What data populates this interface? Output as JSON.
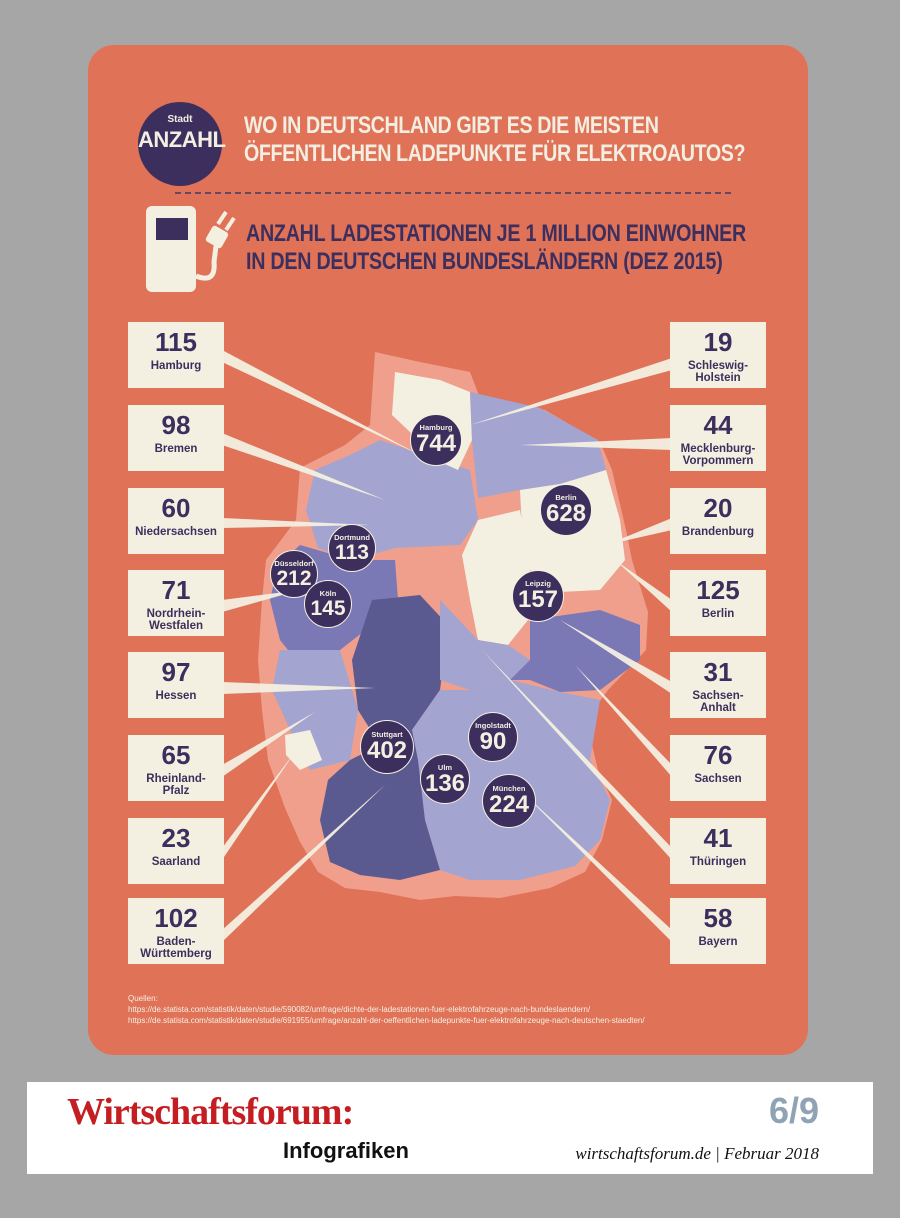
{
  "badge": {
    "small": "Stadt",
    "big": "ANZAHL"
  },
  "headline": {
    "line1": "WO IN DEUTSCHLAND GIBT ES DIE MEISTEN",
    "line2": "ÖFFENTLICHEN  LADEPUNKTE FÜR ELEKTROAUTOS?"
  },
  "subhead": {
    "line1": "ANZAHL LADESTATIONEN JE 1 MILLION EINWOHNER",
    "line2": "IN DEN DEUTSCHEN BUNDESLÄNDERN (DEZ 2015)"
  },
  "states_left": [
    {
      "value": "115",
      "name1": "Hamburg",
      "name2": ""
    },
    {
      "value": "98",
      "name1": "Bremen",
      "name2": ""
    },
    {
      "value": "60",
      "name1": "Niedersachsen",
      "name2": ""
    },
    {
      "value": "71",
      "name1": "Nordrhein-",
      "name2": "Westfalen"
    },
    {
      "value": "97",
      "name1": "Hessen",
      "name2": ""
    },
    {
      "value": "65",
      "name1": "Rheinland-",
      "name2": "Pfalz"
    },
    {
      "value": "23",
      "name1": "Saarland",
      "name2": ""
    },
    {
      "value": "102",
      "name1": "Baden-",
      "name2": "Württemberg"
    }
  ],
  "states_right": [
    {
      "value": "19",
      "name1": "Schleswig-",
      "name2": "Holstein"
    },
    {
      "value": "44",
      "name1": "Mecklenburg-",
      "name2": "Vorpommern"
    },
    {
      "value": "20",
      "name1": "Brandenburg",
      "name2": ""
    },
    {
      "value": "125",
      "name1": "Berlin",
      "name2": ""
    },
    {
      "value": "31",
      "name1": "Sachsen-",
      "name2": "Anhalt"
    },
    {
      "value": "76",
      "name1": "Sachsen",
      "name2": ""
    },
    {
      "value": "41",
      "name1": "Thüringen",
      "name2": ""
    },
    {
      "value": "58",
      "name1": "Bayern",
      "name2": ""
    }
  ],
  "cities": [
    {
      "name": "Hamburg",
      "value": "744"
    },
    {
      "name": "Berlin",
      "value": "628"
    },
    {
      "name": "Dortmund",
      "value": "113"
    },
    {
      "name": "Düsseldorf",
      "value": "212"
    },
    {
      "name": "Köln",
      "value": "145"
    },
    {
      "name": "Leipzig",
      "value": "157"
    },
    {
      "name": "Stuttgart",
      "value": "402"
    },
    {
      "name": "Ingolstadt",
      "value": "90"
    },
    {
      "name": "Ulm",
      "value": "136"
    },
    {
      "name": "München",
      "value": "224"
    }
  ],
  "sources": {
    "label": "Quellen:",
    "url1": "https://de.statista.com/statistik/daten/studie/590082/umfrage/dichte-der-ladestationen-fuer-elektrofahrzeuge-nach-bundeslaendern/",
    "url2": "https://de.statista.com/statistik/daten/studie/691955/umfrage/anzahl-der-oeffentlichen-ladepunkte-fuer-elektrofahrzeuge-nach-deutschen-staedten/"
  },
  "footer": {
    "brand": "Wirtschaftsforum:",
    "sub": "Infografiken",
    "page": "6/9",
    "site": "wirtschaftsforum.de | Februar 2018"
  },
  "colors": {
    "card": "#e07258",
    "dark": "#3c2f5e",
    "cream": "#f4f0e1",
    "region_light": "#a3a4d0",
    "region_mid": "#7b78b6",
    "region_dark": "#5b5a90",
    "halo": "#ef9f8b",
    "brand_red": "#c41e22"
  }
}
